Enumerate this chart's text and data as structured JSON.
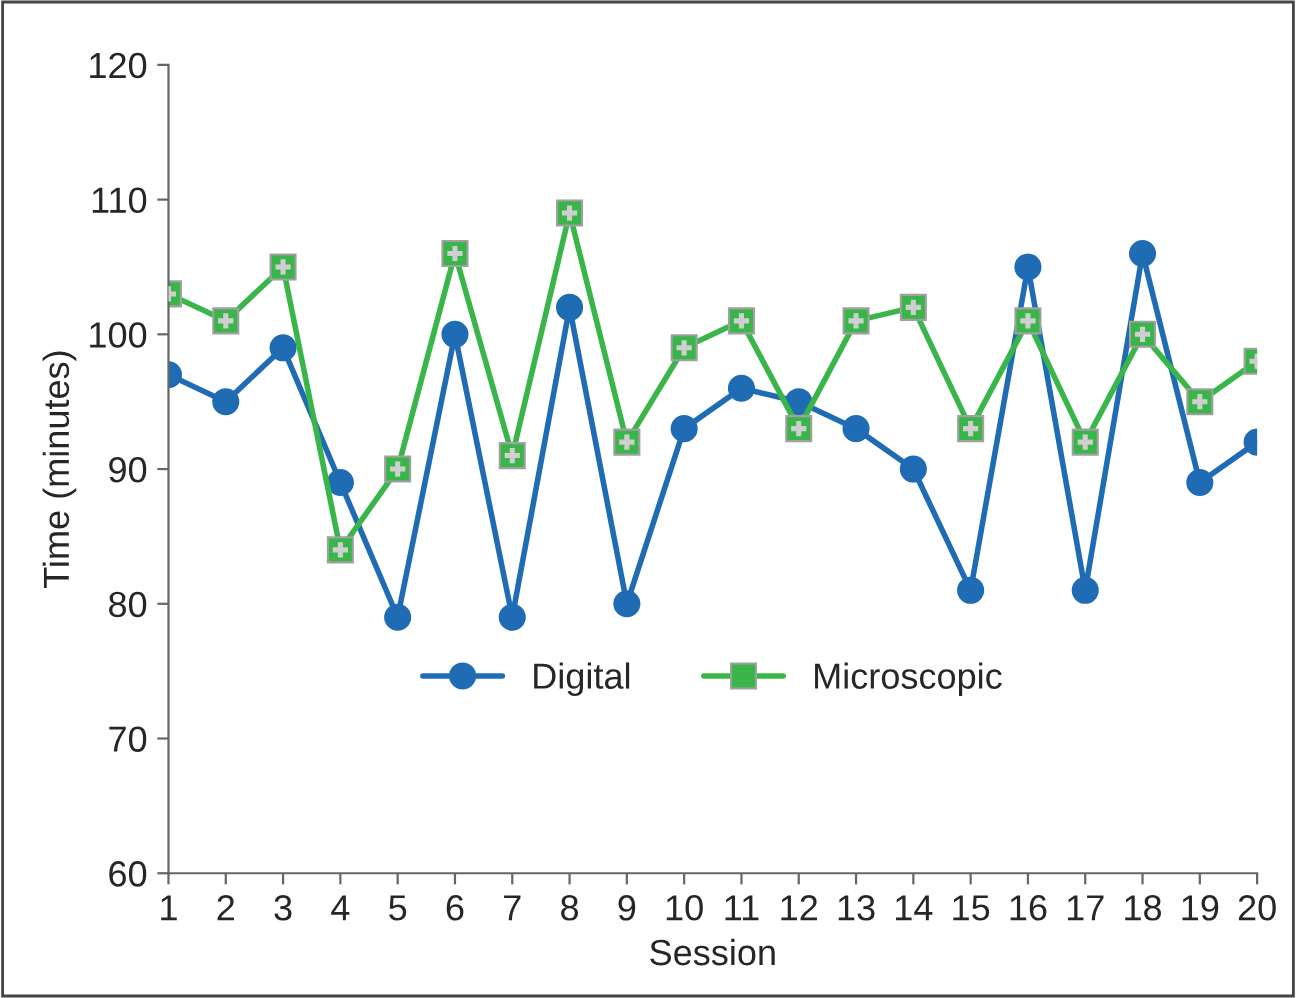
{
  "chart_data": {
    "type": "line",
    "xlabel": "Session",
    "ylabel": "Time (minutes)",
    "categories": [
      "1",
      "2",
      "3",
      "4",
      "5",
      "6",
      "7",
      "8",
      "9",
      "10",
      "11",
      "12",
      "13",
      "14",
      "15",
      "16",
      "17",
      "18",
      "19",
      "20"
    ],
    "series": [
      {
        "name": "Digital",
        "color": "#1f6cb5",
        "marker": "circle",
        "values": [
          97,
          95,
          99,
          89,
          79,
          100,
          79,
          102,
          80,
          93,
          96,
          95,
          93,
          90,
          81,
          105,
          81,
          106,
          89,
          92
        ]
      },
      {
        "name": "Microscopic",
        "color": "#3ab54a",
        "marker": "square",
        "values": [
          103,
          101,
          105,
          84,
          90,
          106,
          91,
          109,
          92,
          99,
          101,
          93,
          101,
          102,
          93,
          101,
          92,
          100,
          95,
          98
        ]
      }
    ],
    "ylim": [
      60,
      120
    ],
    "yticks": [
      60,
      70,
      80,
      90,
      100,
      110,
      120
    ],
    "grid": false,
    "legend": "center",
    "line_style": "solid"
  }
}
